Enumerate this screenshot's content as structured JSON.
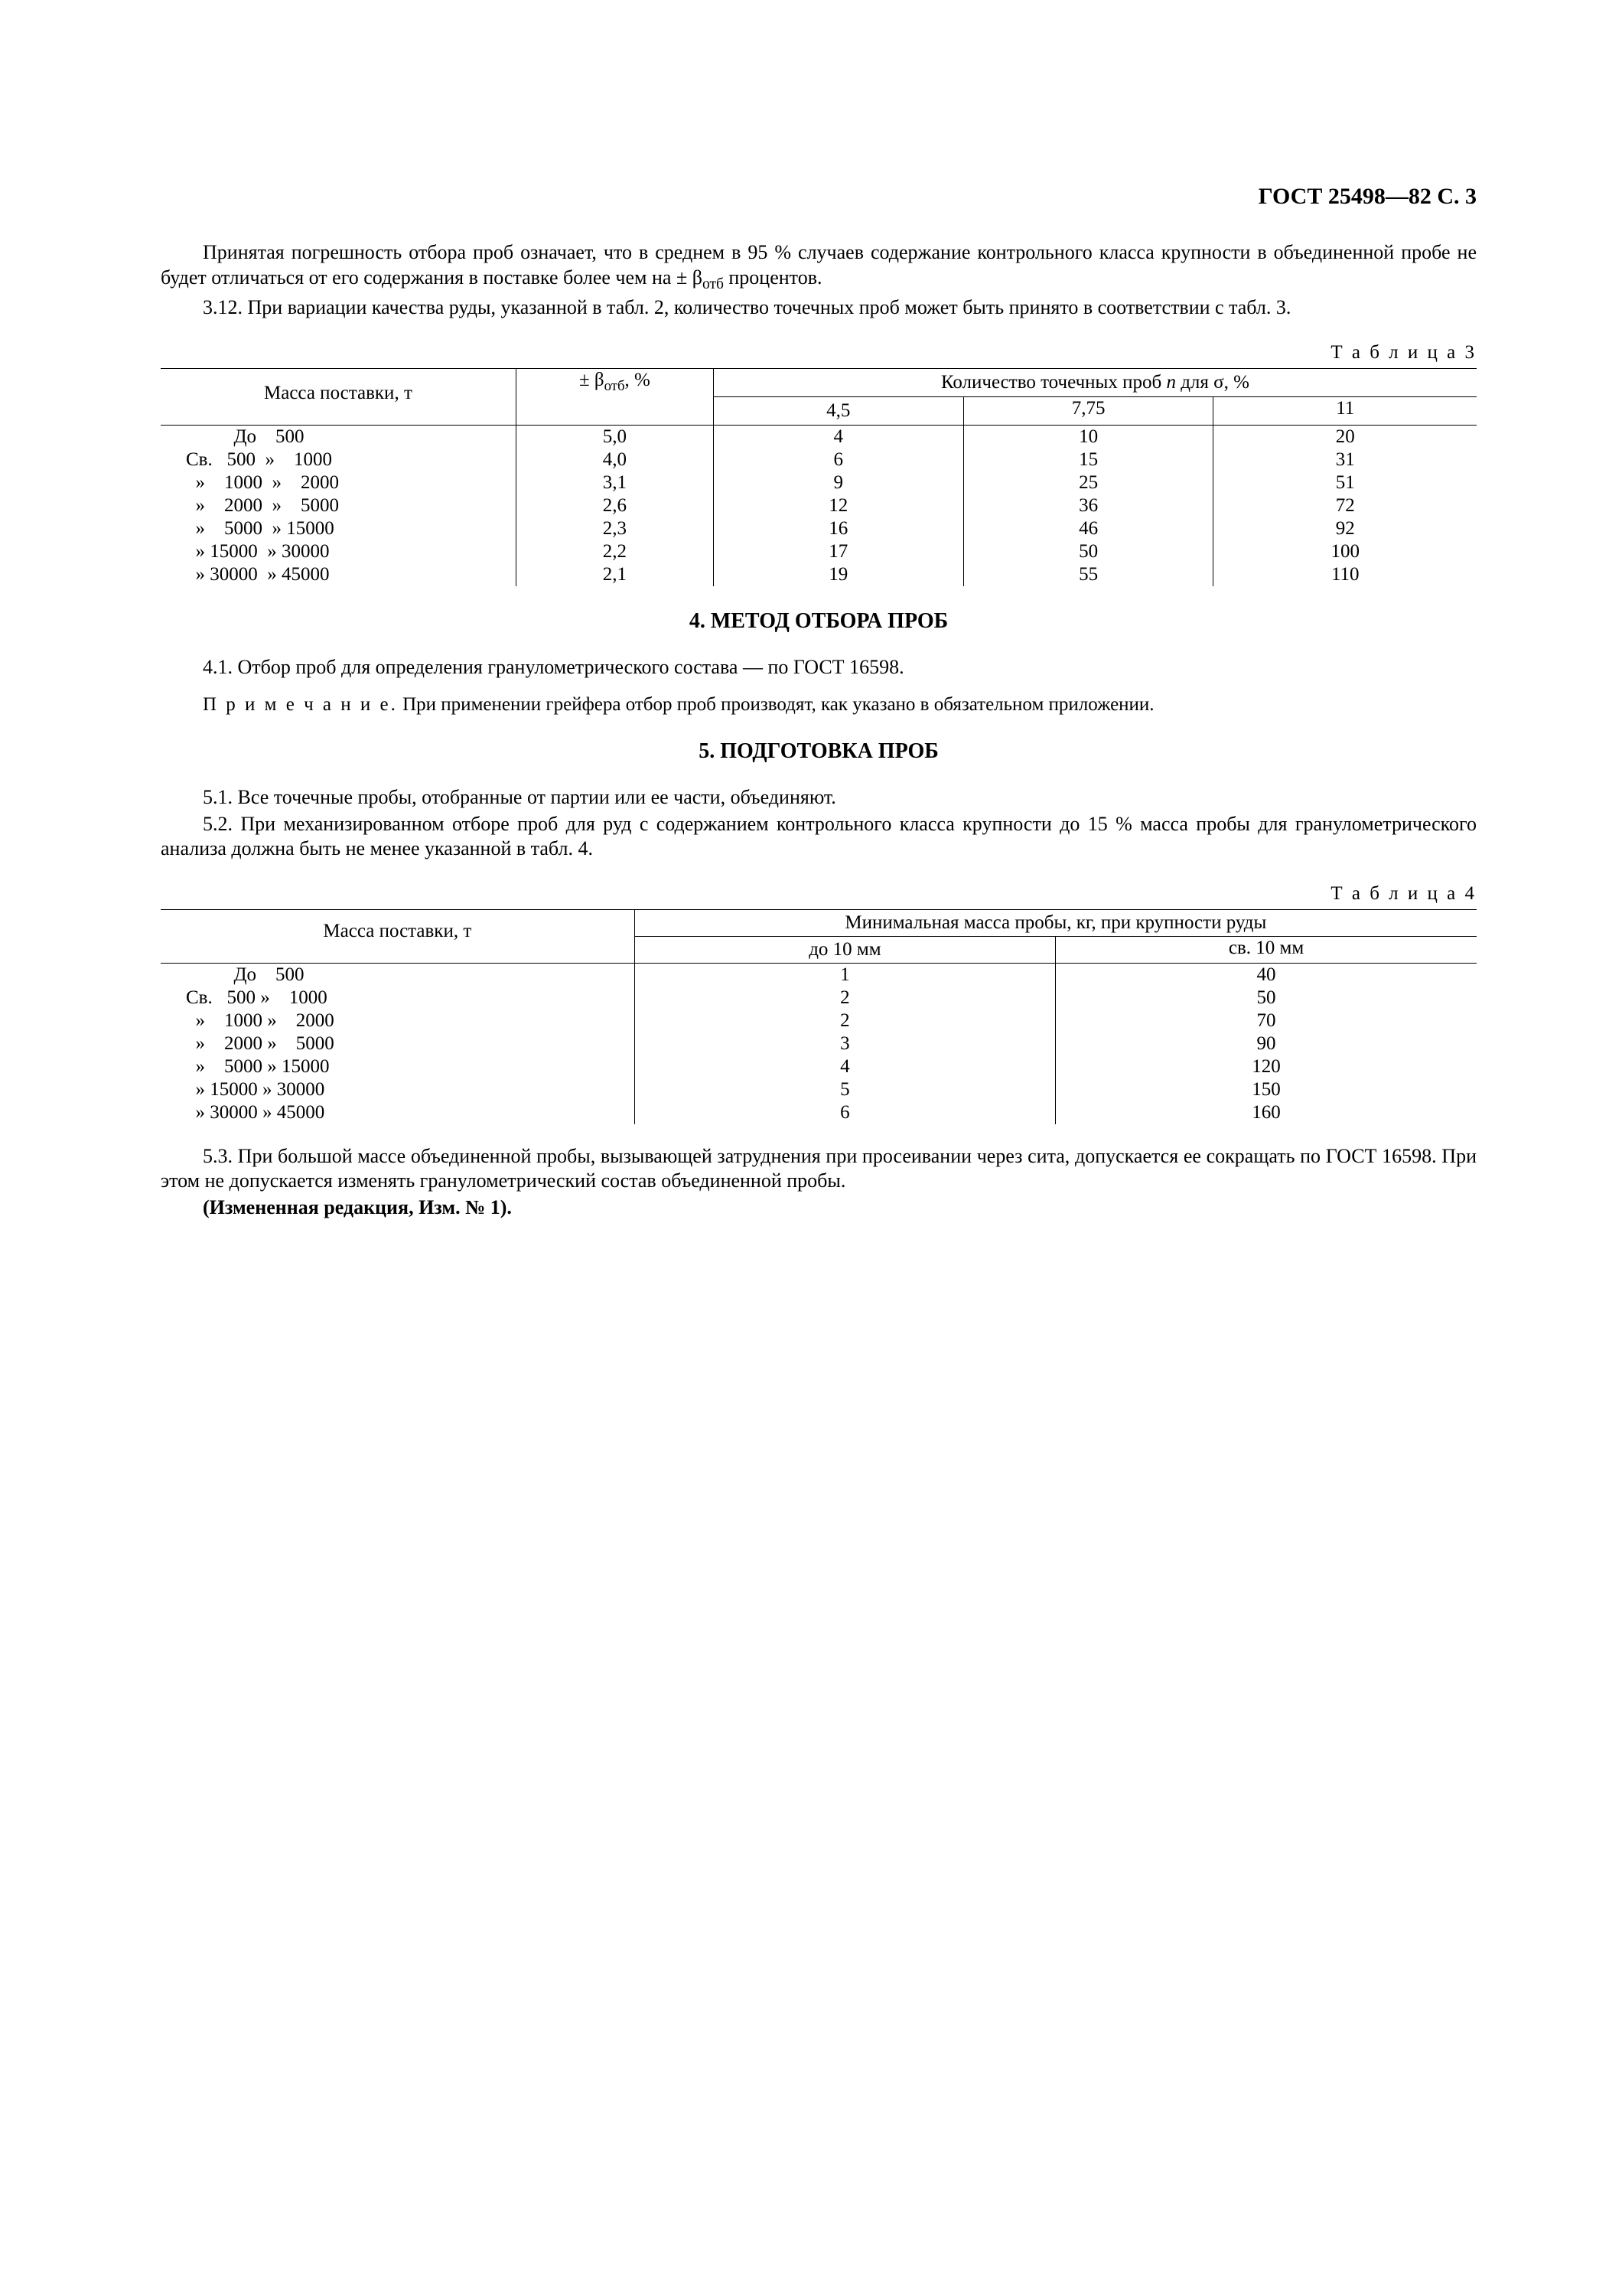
{
  "header": "ГОСТ 25498—82 С. 3",
  "p1": "Принятая погрешность отбора проб означает, что в среднем в 95 % случаев содержание контрольного класса крупности в объединенной пробе не будет отличаться от его содержания в поставке более чем на ± β",
  "p1_sub": "отб",
  "p1_end": " процентов.",
  "p2": "3.12.  При вариации качества руды, указанной в табл.  2, количество точечных проб может быть принято в соответствии с табл.  3.",
  "t3": {
    "caption": "Т а б л и ц а 3",
    "h_mass": "Масса поставки, т",
    "h_beta1": "± β",
    "h_beta_sub": "отб",
    "h_beta2": ", %",
    "h_n": "Количество точечных проб ",
    "h_n_i": "n",
    "h_n2": " для σ, %",
    "subcols": [
      "4,5",
      "7,75",
      "11"
    ],
    "rows": [
      {
        "mass": "              До    500",
        "beta": "5,0",
        "a": "4",
        "b": "10",
        "c": "20"
      },
      {
        "mass": "    Св.   500  »    1000",
        "beta": "4,0",
        "a": "6",
        "b": "15",
        "c": "31"
      },
      {
        "mass": "      »    1000  »    2000",
        "beta": "3,1",
        "a": "9",
        "b": "25",
        "c": "51"
      },
      {
        "mass": "      »    2000  »    5000",
        "beta": "2,6",
        "a": "12",
        "b": "36",
        "c": "72"
      },
      {
        "mass": "      »    5000  » 15000",
        "beta": "2,3",
        "a": "16",
        "b": "46",
        "c": "92"
      },
      {
        "mass": "      » 15000  » 30000",
        "beta": "2,2",
        "a": "17",
        "b": "50",
        "c": "100"
      },
      {
        "mass": "      » 30000  » 45000",
        "beta": "2,1",
        "a": "19",
        "b": "55",
        "c": "110"
      }
    ]
  },
  "s4_title": "4.  МЕТОД ОТБОРА ПРОБ",
  "p4_1": "4.1.  Отбор проб для определения гранулометрического состава — по ГОСТ 16598.",
  "note1_label": "П р и м е ч а н и е.",
  "note1": " При применении грейфера отбор проб производят, как указано в обязательном приложении.",
  "s5_title": "5.  ПОДГОТОВКА ПРОБ",
  "p5_1": "5.1.  Все точечные пробы, отобранные от партии или ее части, объединяют.",
  "p5_2": "5.2.  При механизированном отборе проб для руд с содержанием контрольного класса крупности до 15 % масса пробы для гранулометрического анализа должна быть не менее указанной в табл.  4.",
  "t4": {
    "caption": "Т а б л и ц а 4",
    "h_mass": "Масса поставки, т",
    "h_min": "Минимальная масса пробы, кг, при крупности руды",
    "subcols": [
      "до 10 мм",
      "св. 10 мм"
    ],
    "rows": [
      {
        "mass": "              До    500",
        "a": "1",
        "b": "40"
      },
      {
        "mass": "    Св.   500 »    1000",
        "a": "2",
        "b": "50"
      },
      {
        "mass": "      »    1000 »    2000",
        "a": "2",
        "b": "70"
      },
      {
        "mass": "      »    2000 »    5000",
        "a": "3",
        "b": "90"
      },
      {
        "mass": "      »    5000 » 15000",
        "a": "4",
        "b": "120"
      },
      {
        "mass": "      » 15000 » 30000",
        "a": "5",
        "b": "150"
      },
      {
        "mass": "      » 30000 » 45000",
        "a": "6",
        "b": "160"
      }
    ]
  },
  "p5_3": "5.3.  При большой массе объединенной пробы, вызывающей затруднения при просеивании через сита, допускается ее сокращать по ГОСТ 16598. При этом не допускается изменять гранулометрический состав объединенной пробы.",
  "p5_amend": "(Измененная редакция, Изм. № 1)."
}
